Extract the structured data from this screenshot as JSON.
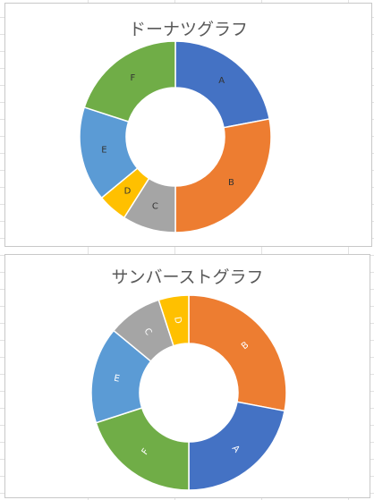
{
  "chart_data": [
    {
      "type": "pie",
      "title": "ドーナツグラフ",
      "categories": [
        "A",
        "B",
        "C",
        "D",
        "E",
        "F"
      ],
      "values": [
        22,
        28,
        9,
        5,
        16,
        20
      ],
      "colors": [
        "#4472C4",
        "#ED7D31",
        "#A5A5A5",
        "#FFC000",
        "#5B9BD5",
        "#70AD47"
      ],
      "label_color": "#333333"
    },
    {
      "type": "pie",
      "title": "サンバーストグラフ",
      "categories": [
        "B",
        "A",
        "F",
        "E",
        "C",
        "D"
      ],
      "values": [
        28,
        22,
        20,
        16,
        9,
        5
      ],
      "colors": [
        "#ED7D31",
        "#4472C4",
        "#70AD47",
        "#5B9BD5",
        "#A5A5A5",
        "#FFC000"
      ],
      "label_color": "#ffffff"
    }
  ]
}
